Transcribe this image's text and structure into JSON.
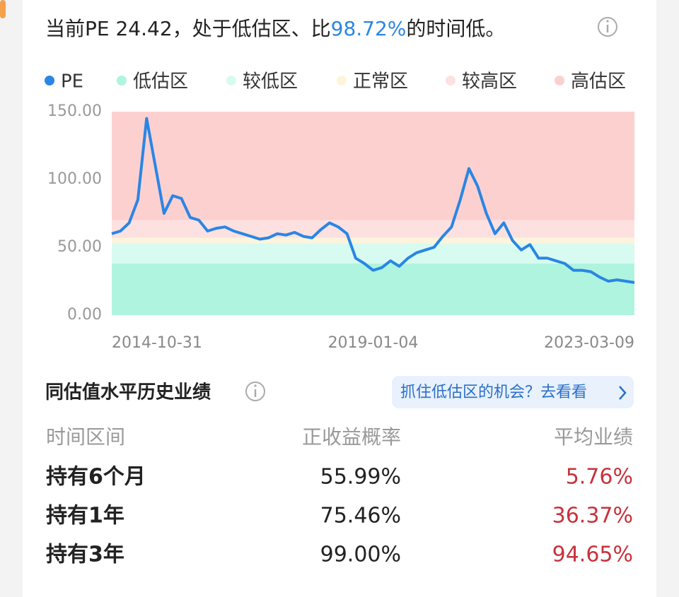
{
  "header": {
    "title_parts": [
      "当前PE 24.42，处于低估区、比",
      "98.72%",
      "的时间低。"
    ]
  },
  "chart_data": {
    "type": "line",
    "categories": [
      "2014-10-31",
      null,
      null,
      null,
      null,
      null,
      null,
      null,
      null,
      null,
      null,
      null,
      null,
      null,
      null,
      null,
      null,
      null,
      null,
      null,
      null,
      null,
      null,
      null,
      null,
      null,
      null,
      null,
      null,
      null,
      "2019-01-04",
      null,
      null,
      null,
      null,
      null,
      null,
      null,
      null,
      null,
      null,
      null,
      null,
      null,
      null,
      null,
      null,
      null,
      null,
      null,
      null,
      null,
      null,
      null,
      null,
      null,
      null,
      null,
      null,
      null,
      "2023-03-09"
    ],
    "series": [
      {
        "name": "PE",
        "color": "#2a86e4",
        "values": [
          60,
          62,
          68,
          85,
          145,
          110,
          75,
          88,
          86,
          72,
          70,
          62,
          64,
          65,
          62,
          60,
          58,
          56,
          57,
          60,
          59,
          61,
          58,
          57,
          63,
          68,
          65,
          60,
          42,
          38,
          33,
          35,
          40,
          36,
          42,
          46,
          48,
          50,
          58,
          65,
          85,
          108,
          95,
          75,
          60,
          68,
          55,
          48,
          52,
          42,
          42,
          40,
          38,
          33,
          33,
          32,
          28,
          25,
          26,
          25,
          24
        ]
      }
    ],
    "zones": [
      {
        "name": "低估区",
        "color": "#aef4de",
        "range": [
          0,
          38
        ]
      },
      {
        "name": "较低区",
        "color": "#d8fbf1",
        "range": [
          38,
          53
        ]
      },
      {
        "name": "正常区",
        "color": "#fcf5dc",
        "range": [
          53,
          57
        ]
      },
      {
        "name": "较高区",
        "color": "#fde1e1",
        "range": [
          57,
          70
        ]
      },
      {
        "name": "高估区",
        "color": "#fdd0d0",
        "range": [
          70,
          150
        ]
      }
    ],
    "ylim": [
      0,
      150
    ],
    "yticks": [
      {
        "value": 0,
        "label": "0.00"
      },
      {
        "value": 50,
        "label": "50.00"
      },
      {
        "value": 100,
        "label": "100.00"
      },
      {
        "value": 150,
        "label": "150.00"
      }
    ],
    "grid": false
  },
  "section": {
    "title": "同估值水平历史业绩",
    "link": "抓住低估区的机会？去看看"
  },
  "table": {
    "header": [
      "时间区间",
      "正收益概率",
      "平均业绩"
    ],
    "rows": [
      [
        "持有6个月",
        "55.99%",
        "5.76%"
      ],
      [
        "持有1年",
        "75.46%",
        "36.37%"
      ],
      [
        "持有3年",
        "99.00%",
        "94.65%"
      ]
    ]
  }
}
